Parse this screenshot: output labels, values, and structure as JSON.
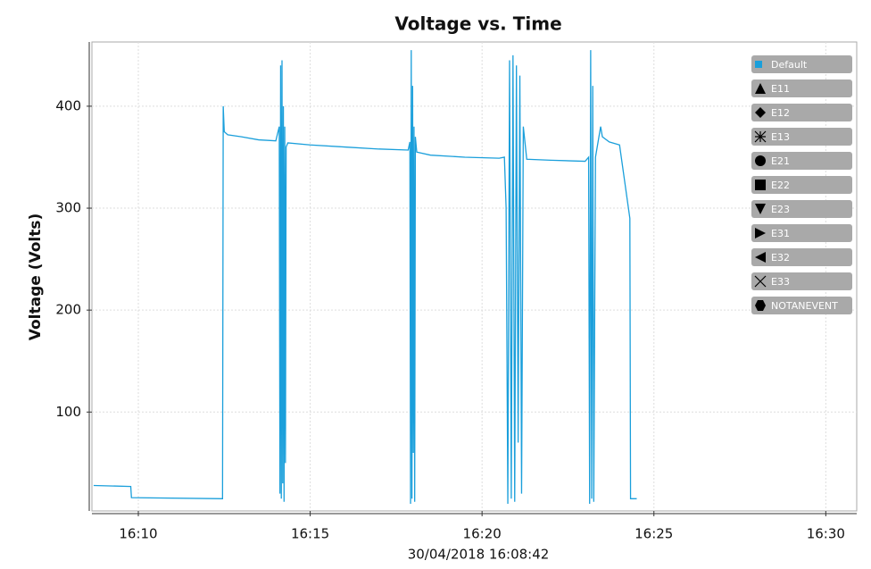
{
  "chart_data": {
    "type": "line",
    "title": "Voltage vs. Time",
    "ylabel": "Voltage (Volts)",
    "xlabel": "30/04/2018 16:08:42",
    "xlim": [
      968.65,
      990.9
    ],
    "ylim": [
      3,
      463
    ],
    "xticks": [
      {
        "value": 970,
        "label": "16:10"
      },
      {
        "value": 975,
        "label": "16:15"
      },
      {
        "value": 980,
        "label": "16:20"
      },
      {
        "value": 985,
        "label": "16:25"
      },
      {
        "value": 990,
        "label": "16:30"
      }
    ],
    "yticks": [
      100,
      200,
      300,
      400
    ],
    "grid": true,
    "legend_position": "upper right",
    "x": [
      968.7,
      969.78,
      969.8,
      972.45,
      972.47,
      972.5,
      972.6,
      973.0,
      973.5,
      974.0,
      974.1,
      974.12,
      974.14,
      974.16,
      974.18,
      974.2,
      974.22,
      974.24,
      974.26,
      974.28,
      974.3,
      974.35,
      975.0,
      976.0,
      977.0,
      977.85,
      977.9,
      977.92,
      977.94,
      977.96,
      977.98,
      978.0,
      978.02,
      978.04,
      978.06,
      978.1,
      978.5,
      979.5,
      980.5,
      980.65,
      980.7,
      980.75,
      980.8,
      980.85,
      980.9,
      980.95,
      981.0,
      981.05,
      981.1,
      981.15,
      981.2,
      981.3,
      982.0,
      983.0,
      983.1,
      983.13,
      983.16,
      983.19,
      983.22,
      983.25,
      983.3,
      983.45,
      983.5,
      983.7,
      984.0,
      984.3,
      984.32,
      984.5
    ],
    "series": [
      {
        "name": "Default",
        "color": "#1a9fdb",
        "marker": "square",
        "values": [
          28,
          27,
          16,
          15,
          400,
          375,
          372,
          370,
          367,
          366,
          380,
          20,
          440,
          15,
          445,
          30,
          400,
          12,
          380,
          50,
          360,
          364,
          362,
          360,
          358,
          357,
          365,
          10,
          455,
          15,
          420,
          60,
          380,
          12,
          370,
          355,
          352,
          350,
          349,
          350,
          300,
          10,
          445,
          15,
          450,
          12,
          440,
          70,
          430,
          20,
          380,
          348,
          347,
          346,
          350,
          10,
          455,
          15,
          420,
          12,
          350,
          380,
          370,
          365,
          362,
          290,
          15,
          15
        ]
      }
    ],
    "legend_entries": [
      {
        "name": "E11",
        "marker": "triangle-up",
        "color": "#000000"
      },
      {
        "name": "E12",
        "marker": "diamond",
        "color": "#000000"
      },
      {
        "name": "E13",
        "marker": "asterisk",
        "color": "#000000"
      },
      {
        "name": "E21",
        "marker": "circle",
        "color": "#000000"
      },
      {
        "name": "E22",
        "marker": "square",
        "color": "#000000"
      },
      {
        "name": "E23",
        "marker": "triangle-down",
        "color": "#000000"
      },
      {
        "name": "E31",
        "marker": "triangle-right",
        "color": "#000000"
      },
      {
        "name": "E32",
        "marker": "triangle-left",
        "color": "#000000"
      },
      {
        "name": "E33",
        "marker": "x",
        "color": "#000000"
      },
      {
        "name": "NOTANEVENT",
        "marker": "hexagon",
        "color": "#000000"
      }
    ]
  }
}
